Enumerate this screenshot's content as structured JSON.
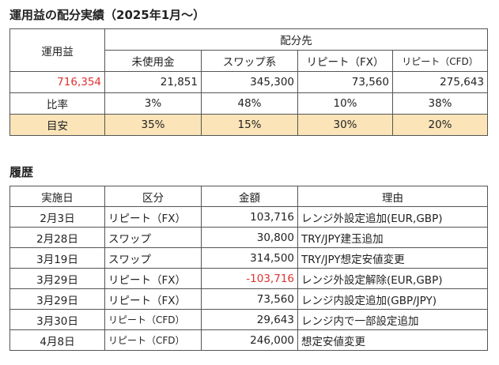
{
  "section1": {
    "title": "運用益の配分実績（2025年1月～）",
    "header_profit": "運用益",
    "header_alloc": "配分先",
    "categories": [
      "未使用金",
      "スワップ系",
      "リピート（FX）",
      "リピート（CFD）"
    ],
    "profit_total": "716,354",
    "amounts": [
      "21,851",
      "345,300",
      "73,560",
      "275,643"
    ],
    "ratio_label": "比率",
    "ratios": [
      "3%",
      "48%",
      "10%",
      "38%"
    ],
    "target_label": "目安",
    "targets": [
      "35%",
      "15%",
      "30%",
      "20%"
    ]
  },
  "section2": {
    "title": "履歴",
    "headers": [
      "実施日",
      "区分",
      "金額",
      "理由"
    ],
    "rows": [
      {
        "date": "2月3日",
        "type": "リピート（FX）",
        "amount": "103,716",
        "reason": "レンジ外設定追加(EUR,GBP)"
      },
      {
        "date": "2月28日",
        "type": "スワップ",
        "amount": "30,800",
        "reason": "TRY/JPY建玉追加"
      },
      {
        "date": "3月19日",
        "type": "スワップ",
        "amount": "314,500",
        "reason": "TRY/JPY想定安値変更"
      },
      {
        "date": "3月29日",
        "type": "リピート（FX）",
        "amount": "-103,716",
        "reason": "レンジ外設定解除(EUR,GBP)"
      },
      {
        "date": "3月29日",
        "type": "リピート（FX）",
        "amount": "73,560",
        "reason": "レンジ内設定追加(GBP/JPY)"
      },
      {
        "date": "3月30日",
        "type": "リピート（CFD）",
        "amount": "29,643",
        "reason": "レンジ内で一部設定追加"
      },
      {
        "date": "4月8日",
        "type": "リピート（CFD）",
        "amount": "246,000",
        "reason": "想定安値変更"
      }
    ]
  }
}
